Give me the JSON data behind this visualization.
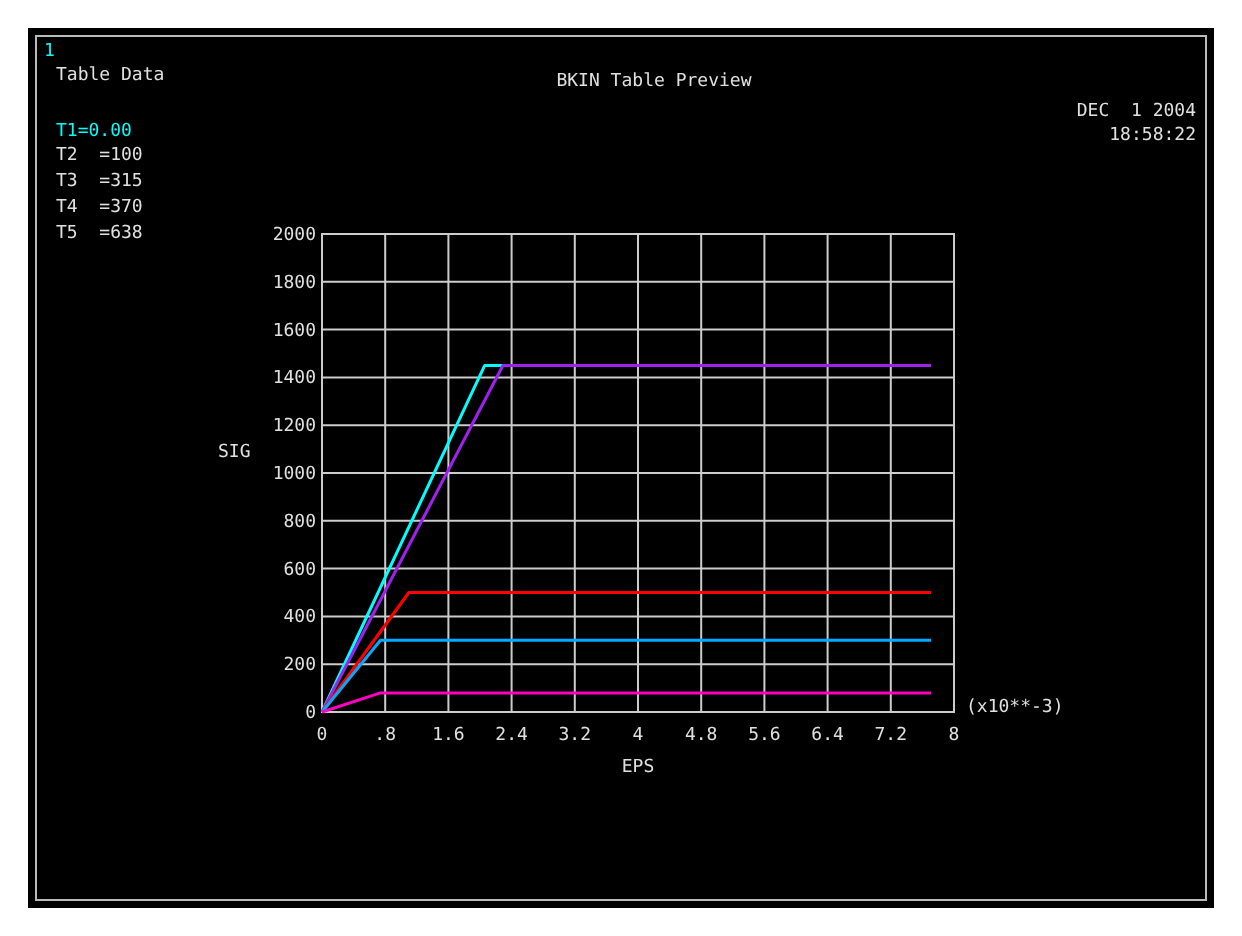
{
  "chart_data": {
    "type": "line",
    "title": "BKIN Table Preview",
    "xlabel": "EPS",
    "ylabel": "SIG",
    "annotations": [
      "1",
      "Table Data",
      "T1=0.00",
      "T2  =100",
      "T3  =315",
      "T4  =370",
      "T5  =638",
      "DEC  1 2004",
      "18:58:22",
      "(x10**-3)"
    ],
    "xlim": [
      0,
      8
    ],
    "ylim": [
      0,
      2000
    ],
    "xticks": [
      0,
      {
        "value": 0.8,
        "label": ".8"
      },
      1.6,
      2.4,
      3.2,
      4,
      4.8,
      5.6,
      6.4,
      7.2,
      8
    ],
    "yticks": [
      0,
      200,
      400,
      600,
      800,
      1000,
      1200,
      1400,
      1600,
      1800,
      2000
    ],
    "grid": true,
    "marker": "none",
    "line_style": "solid",
    "series": [
      {
        "color": "#00ffff",
        "x": [
          0,
          2.06,
          2.29
        ],
        "values": [
          0,
          1450,
          1450
        ]
      },
      {
        "color": "#a020f0",
        "x": [
          0,
          2.29,
          7.71
        ],
        "values": [
          0,
          1450,
          1450
        ]
      },
      {
        "color": "#ff0000",
        "x": [
          0,
          1.1,
          7.71
        ],
        "values": [
          0,
          500,
          500
        ]
      },
      {
        "color": "#00aaff",
        "x": [
          0,
          0.74,
          7.71
        ],
        "values": [
          0,
          300,
          300
        ]
      },
      {
        "color": "#ff00c0",
        "x": [
          0,
          0.74,
          7.71
        ],
        "values": [
          0,
          80,
          80
        ]
      }
    ]
  }
}
